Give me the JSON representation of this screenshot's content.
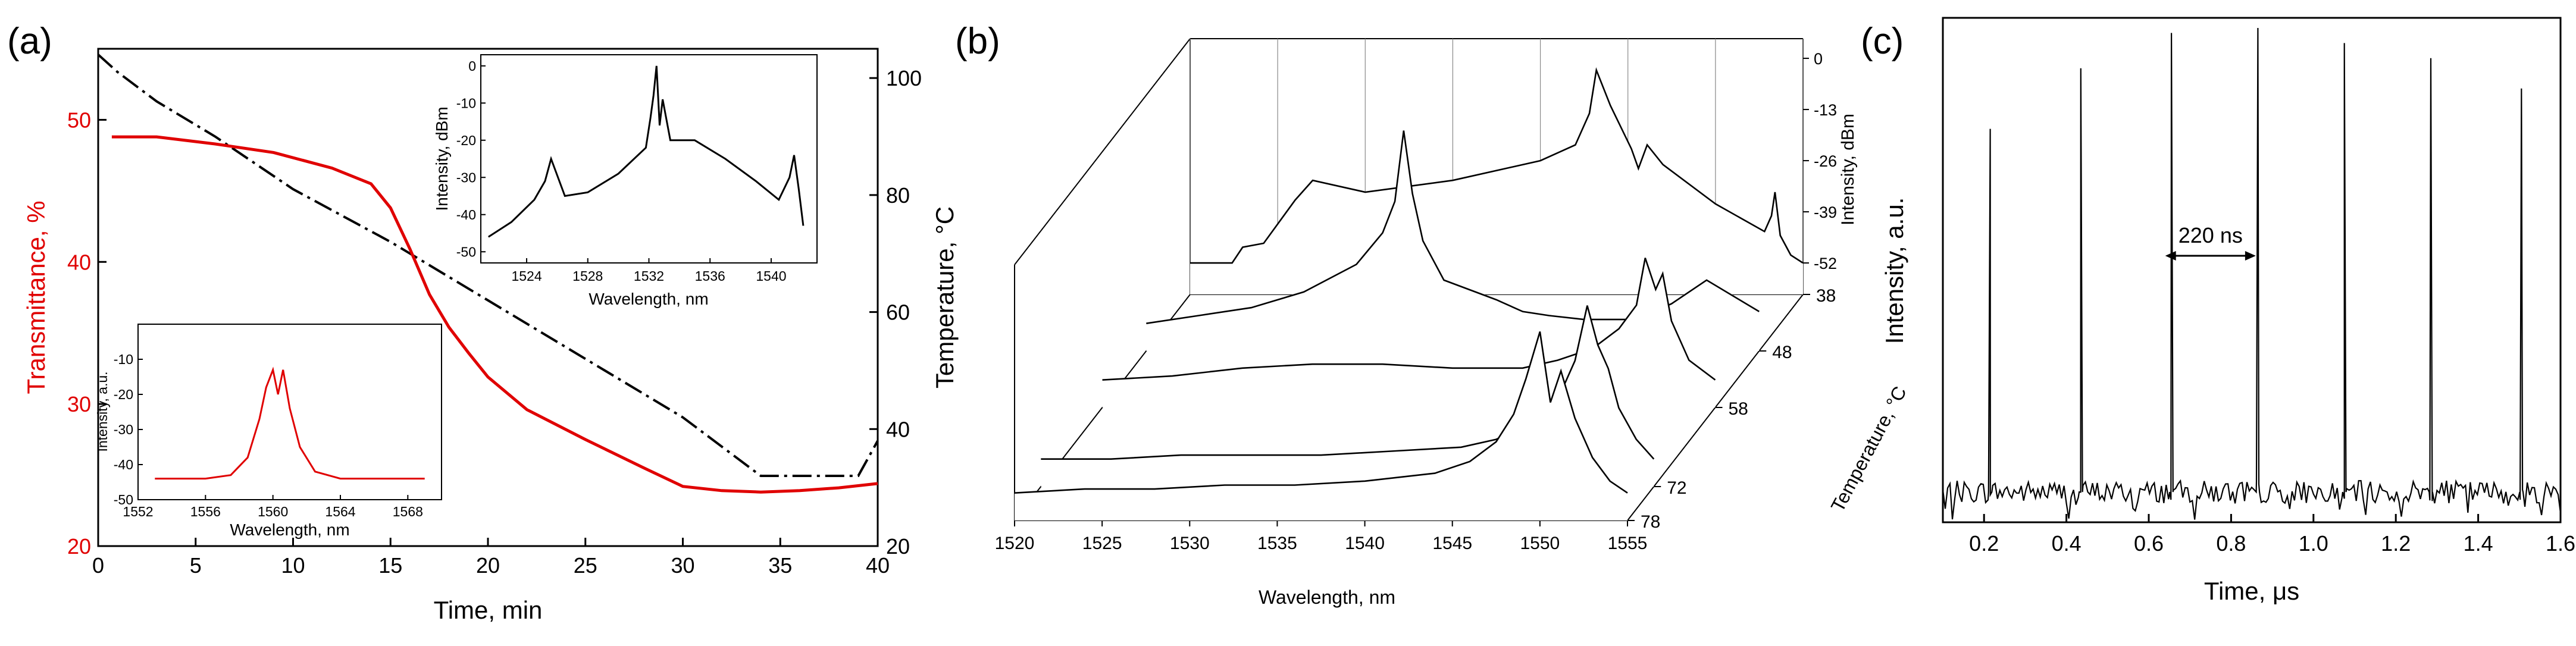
{
  "panels": {
    "a": {
      "label": "(a)"
    },
    "b": {
      "label": "(b)"
    },
    "c": {
      "label": "(c)"
    }
  },
  "chart_data": [
    {
      "panel": "a",
      "type": "line",
      "xlabel": "Time, min",
      "ylabel_left": "Transmittance, %",
      "ylabel_right": "Temperature, °C",
      "xlim": [
        0,
        40
      ],
      "ylim_left": [
        20,
        55
      ],
      "ylim_right": [
        20,
        105
      ],
      "xticks": [
        0,
        5,
        10,
        15,
        20,
        25,
        30,
        35,
        40
      ],
      "yticks_left": [
        20,
        30,
        40,
        50
      ],
      "yticks_right": [
        20,
        40,
        60,
        80,
        100
      ],
      "colors": {
        "transmittance": "#e00000",
        "temperature": "#000000"
      },
      "series": [
        {
          "name": "Transmittance",
          "axis": "left",
          "style": "solid",
          "color": "#e00000",
          "x": [
            0.7,
            3,
            6,
            9,
            12,
            14,
            15,
            16,
            17,
            18,
            19,
            20,
            22,
            25,
            28,
            30,
            32,
            34,
            36,
            38,
            40
          ],
          "y": [
            48.8,
            48.8,
            48.3,
            47.7,
            46.6,
            45.5,
            43.8,
            40.9,
            37.7,
            35.4,
            33.6,
            31.9,
            29.6,
            27.5,
            25.5,
            24.2,
            23.9,
            23.8,
            23.9,
            24.1,
            24.4
          ]
        },
        {
          "name": "Temperature",
          "axis": "right",
          "style": "dashdot",
          "color": "#000000",
          "x": [
            0,
            1,
            3,
            6,
            10,
            15,
            20,
            25,
            30,
            32,
            34,
            36,
            38,
            39,
            40
          ],
          "y": [
            104,
            101,
            96,
            90,
            81,
            72,
            62,
            52,
            42,
            37,
            32,
            32,
            32,
            32,
            38
          ]
        }
      ],
      "insets": [
        {
          "name": "inset-top",
          "type": "line",
          "xlabel": "Wavelength, nm",
          "ylabel": "Intensity, dBm",
          "xlim": [
            1521,
            1543
          ],
          "ylim": [
            -53,
            3
          ],
          "xticks": [
            1524,
            1528,
            1532,
            1536,
            1540
          ],
          "yticks": [
            0,
            -10,
            -20,
            -30,
            -40,
            -50
          ],
          "x": [
            1521.5,
            1523,
            1524.5,
            1525.2,
            1525.6,
            1526.5,
            1528,
            1530,
            1531.8,
            1532.1,
            1532.3,
            1532.5,
            1532.7,
            1532.9,
            1533.4,
            1535,
            1537,
            1539,
            1540.5,
            1541.2,
            1541.5,
            1541.8,
            1542.1
          ],
          "y": [
            -46,
            -42,
            -36,
            -31,
            -25,
            -35,
            -34,
            -29,
            -22,
            -14,
            -8,
            0,
            -16,
            -9,
            -20,
            -20,
            -25,
            -31,
            -36,
            -30,
            -24,
            -33,
            -43
          ]
        },
        {
          "name": "inset-bottom",
          "type": "line",
          "xlabel": "Wavelength, nm",
          "ylabel": "Intensity, a.u.",
          "xlim": [
            1552,
            1570
          ],
          "ylim": [
            -50,
            0
          ],
          "xticks": [
            1552,
            1556,
            1560,
            1564,
            1568
          ],
          "yticks": [
            -10,
            -20,
            -30,
            -40,
            -50
          ],
          "color": "#e00000",
          "x": [
            1553,
            1556,
            1557.5,
            1558.5,
            1559.2,
            1559.6,
            1560.0,
            1560.3,
            1560.6,
            1561.0,
            1561.6,
            1562.5,
            1564,
            1567,
            1569
          ],
          "y": [
            -44,
            -44,
            -43,
            -38,
            -27,
            -18,
            -13,
            -20,
            -13,
            -24,
            -35,
            -42,
            -44,
            -44,
            -44
          ]
        }
      ]
    },
    {
      "panel": "b",
      "type": "line",
      "xlabel": "Wavelength, nm",
      "ylabel": "Temperature, °C",
      "zlabel": "Intensity, dBm",
      "xlim": [
        1520,
        1555
      ],
      "zlim": [
        -60,
        5
      ],
      "xticks": [
        1520,
        1525,
        1530,
        1535,
        1540,
        1545,
        1550,
        1555
      ],
      "yticks": [
        38,
        48,
        58,
        72,
        78
      ],
      "zticks": [
        0,
        -13,
        -26,
        -39,
        -52
      ],
      "series": [
        {
          "name": "38 °C",
          "temperature": 38,
          "x": [
            1520,
            1521,
            1522.4,
            1523,
            1524.2,
            1526,
            1527,
            1530,
            1535,
            1540,
            1542,
            1542.8,
            1543.2,
            1544,
            1545.2,
            1545.6,
            1546.1,
            1547,
            1550,
            1552.8,
            1553.2,
            1553.4,
            1553.7,
            1554.3,
            1555
          ],
          "y": [
            -52,
            -52,
            -52,
            -48,
            -47,
            -36,
            -31,
            -34,
            -31,
            -26,
            -22,
            -14,
            -3,
            -12,
            -23,
            -28,
            -22,
            -27,
            -37,
            -44,
            -40,
            -34,
            -45,
            -50,
            -52
          ]
        },
        {
          "name": "48 °C",
          "temperature": 48,
          "x": [
            1520,
            1523,
            1526,
            1529,
            1532,
            1533.5,
            1534.2,
            1534.7,
            1535.2,
            1535.8,
            1537,
            1540,
            1541.5,
            1543,
            1545,
            1548,
            1550,
            1552,
            1555
          ],
          "y": [
            -53,
            -51,
            -49,
            -45,
            -38,
            -30,
            -22,
            -4,
            -20,
            -32,
            -42,
            -47,
            -50,
            -51,
            -52,
            -52,
            -48,
            -42,
            -50
          ]
        },
        {
          "name": "58 °C",
          "temperature": 58,
          "x": [
            1520,
            1524,
            1528,
            1532,
            1536,
            1540,
            1544,
            1546,
            1548,
            1549.5,
            1550.5,
            1551,
            1551.6,
            1552,
            1552.5,
            1553.5,
            1555
          ],
          "y": [
            -53,
            -52,
            -50,
            -49,
            -49,
            -50,
            -50,
            -48,
            -45,
            -40,
            -34,
            -22,
            -30,
            -26,
            -38,
            -48,
            -53
          ]
        },
        {
          "name": "72 °C",
          "temperature": 72,
          "x": [
            1520,
            1524,
            1528,
            1532,
            1536,
            1540,
            1544,
            1546,
            1548,
            1549.5,
            1550.5,
            1551.2,
            1551.8,
            1552.4,
            1553,
            1554,
            1555
          ],
          "y": [
            -53,
            -53,
            -52,
            -52,
            -52,
            -51,
            -50,
            -48,
            -44,
            -38,
            -28,
            -14,
            -24,
            -30,
            -40,
            -48,
            -53
          ]
        },
        {
          "name": "78 °C",
          "temperature": 78,
          "x": [
            1520,
            1524,
            1528,
            1532,
            1536,
            1540,
            1544,
            1546,
            1547.5,
            1548.5,
            1549.2,
            1550,
            1550.6,
            1551.2,
            1552,
            1553,
            1554,
            1555
          ],
          "y": [
            -53,
            -52,
            -52,
            -51,
            -51,
            -50,
            -48,
            -45,
            -40,
            -33,
            -24,
            -12,
            -30,
            -22,
            -34,
            -44,
            -50,
            -53
          ]
        }
      ]
    },
    {
      "panel": "c",
      "type": "line",
      "xlabel": "Time, μs",
      "ylabel": "Intensity, a.u.",
      "xlim": [
        0.1,
        1.6
      ],
      "ylim": [
        0,
        1
      ],
      "xticks": [
        0.2,
        0.4,
        0.6,
        0.8,
        1.0,
        1.2,
        1.4,
        1.6
      ],
      "annotation": {
        "text": "220 ns",
        "x_from": 0.64,
        "x_to": 0.86
      },
      "pulses": {
        "x": [
          0.215,
          0.435,
          0.655,
          0.865,
          1.075,
          1.285,
          1.505
        ],
        "y": [
          0.78,
          0.9,
          0.97,
          0.98,
          0.95,
          0.92,
          0.86
        ]
      },
      "baseline_level": 0.06
    }
  ]
}
